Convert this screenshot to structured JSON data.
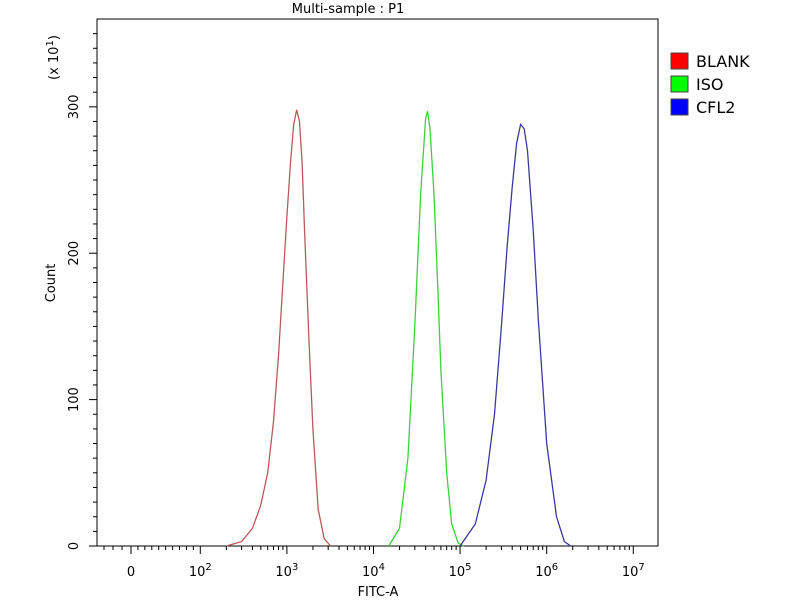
{
  "chart_data": {
    "type": "line",
    "title": "Multi-sample : P1",
    "xlabel": "FITC-A",
    "ylabel": "Count",
    "y_multiplier_label": "(x 10",
    "y_multiplier_exp": "1",
    "x_scale": "biexponential",
    "x_ticks": [
      {
        "base": "0",
        "exp": ""
      },
      {
        "base": "10",
        "exp": "2"
      },
      {
        "base": "10",
        "exp": "3"
      },
      {
        "base": "10",
        "exp": "4"
      },
      {
        "base": "10",
        "exp": "5"
      },
      {
        "base": "10",
        "exp": "6"
      },
      {
        "base": "10",
        "exp": "7"
      }
    ],
    "y_ticks": [
      "0",
      "100",
      "200",
      "300"
    ],
    "ylim": [
      0,
      360
    ],
    "legend_position": "top-right",
    "grid": false,
    "series": [
      {
        "name": "BLANK",
        "color": "#ff0000",
        "curve_color": "#b85a5a",
        "x": [
          200,
          300,
          400,
          500,
          600,
          700,
          800,
          900,
          1000,
          1100,
          1200,
          1300,
          1400,
          1500,
          1600,
          1800,
          2000,
          2300,
          2700,
          3200
        ],
        "y": [
          0,
          3,
          12,
          28,
          50,
          85,
          130,
          180,
          225,
          262,
          288,
          298,
          290,
          262,
          215,
          140,
          80,
          25,
          5,
          0
        ]
      },
      {
        "name": "ISO",
        "color": "#00ff00",
        "curve_color": "#3cd23c",
        "x": [
          15000,
          20000,
          25000,
          30000,
          35000,
          40000,
          42000,
          45000,
          50000,
          55000,
          60000,
          70000,
          80000,
          95000,
          110000
        ],
        "y": [
          0,
          12,
          60,
          150,
          240,
          292,
          297,
          285,
          240,
          180,
          120,
          50,
          15,
          2,
          0
        ]
      },
      {
        "name": "CFL2",
        "color": "#0000ff",
        "curve_color": "#3a3a9e",
        "x": [
          100000,
          150000,
          200000,
          250000,
          300000,
          350000,
          400000,
          450000,
          500000,
          550000,
          600000,
          700000,
          800000,
          1000000,
          1300000,
          1600000,
          1900000
        ],
        "y": [
          0,
          15,
          45,
          90,
          150,
          205,
          245,
          275,
          288,
          285,
          270,
          215,
          155,
          70,
          20,
          3,
          0
        ]
      }
    ]
  }
}
